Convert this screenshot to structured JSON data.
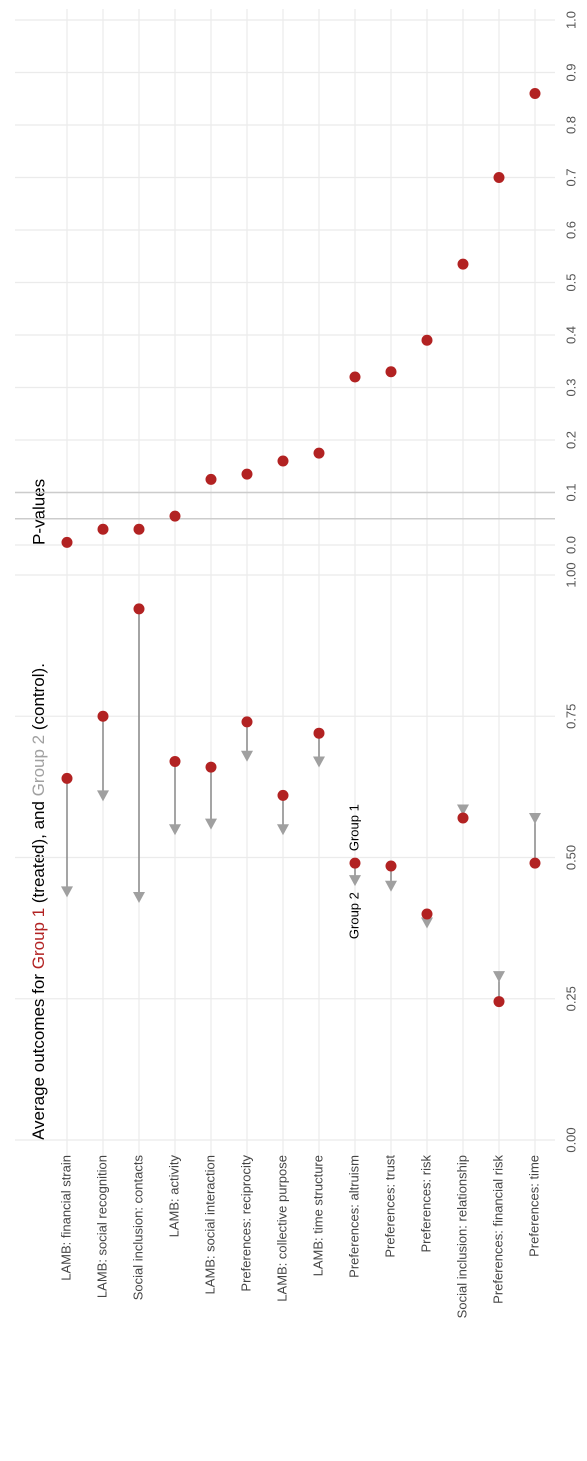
{
  "chart_data": [
    {
      "type": "dumbbell",
      "title": [
        "Average outcomes for ",
        "Group 1",
        " (treated), and ",
        "Group 2",
        " (control)."
      ],
      "categories": [
        "LAMB: financial strain",
        "LAMB: social recognition",
        "Social inclusion: contacts",
        "LAMB: activity",
        "LAMB: social interaction",
        "Preferences: reciprocity",
        "LAMB: collective purpose",
        "LAMB: time structure",
        "Preferences: altruism",
        "Preferences: trust",
        "Preferences: risk",
        "Social inclusion: relationship",
        "Preferences: financial risk",
        "Preferences: time"
      ],
      "series": [
        {
          "name": "Group 1",
          "color": "#b22222",
          "values": [
            0.64,
            0.75,
            0.94,
            0.67,
            0.66,
            0.74,
            0.61,
            0.72,
            0.49,
            0.485,
            0.4,
            0.57,
            0.245,
            0.49
          ]
        },
        {
          "name": "Group 2",
          "color": "#a0a0a0",
          "values": [
            0.44,
            0.61,
            0.43,
            0.55,
            0.56,
            0.68,
            0.55,
            0.67,
            0.46,
            0.45,
            0.385,
            0.585,
            0.29,
            0.57
          ]
        }
      ],
      "annotations": [
        {
          "text": "Group 1",
          "category": "Preferences: altruism"
        },
        {
          "text": "Group 2",
          "category": "Preferences: altruism"
        }
      ],
      "segment_color": "#888888",
      "xlim": [
        0,
        1
      ],
      "xticks": [
        {
          "value": 0,
          "label": "0.00"
        },
        0.25,
        {
          "value": 0.5,
          "label": "0.50"
        },
        0.75,
        {
          "value": 1,
          "label": "1.00"
        }
      ],
      "grid": true
    },
    {
      "type": "scatter",
      "title": "P-values",
      "color": "#b22222",
      "values": [
        0.005,
        0.03,
        0.03,
        0.055,
        0.125,
        0.135,
        0.16,
        0.175,
        0.32,
        0.33,
        0.39,
        0.535,
        0.7,
        0.86
      ],
      "reference_lines": [
        0.05,
        0.1
      ],
      "xlim": [
        0,
        1
      ],
      "xticks": [
        {
          "value": 0,
          "label": "0.0"
        },
        0.1,
        0.2,
        0.3,
        0.4,
        0.5,
        0.6,
        0.7,
        0.8,
        0.9,
        {
          "value": 1,
          "label": "1.0"
        }
      ],
      "grid": true
    }
  ]
}
